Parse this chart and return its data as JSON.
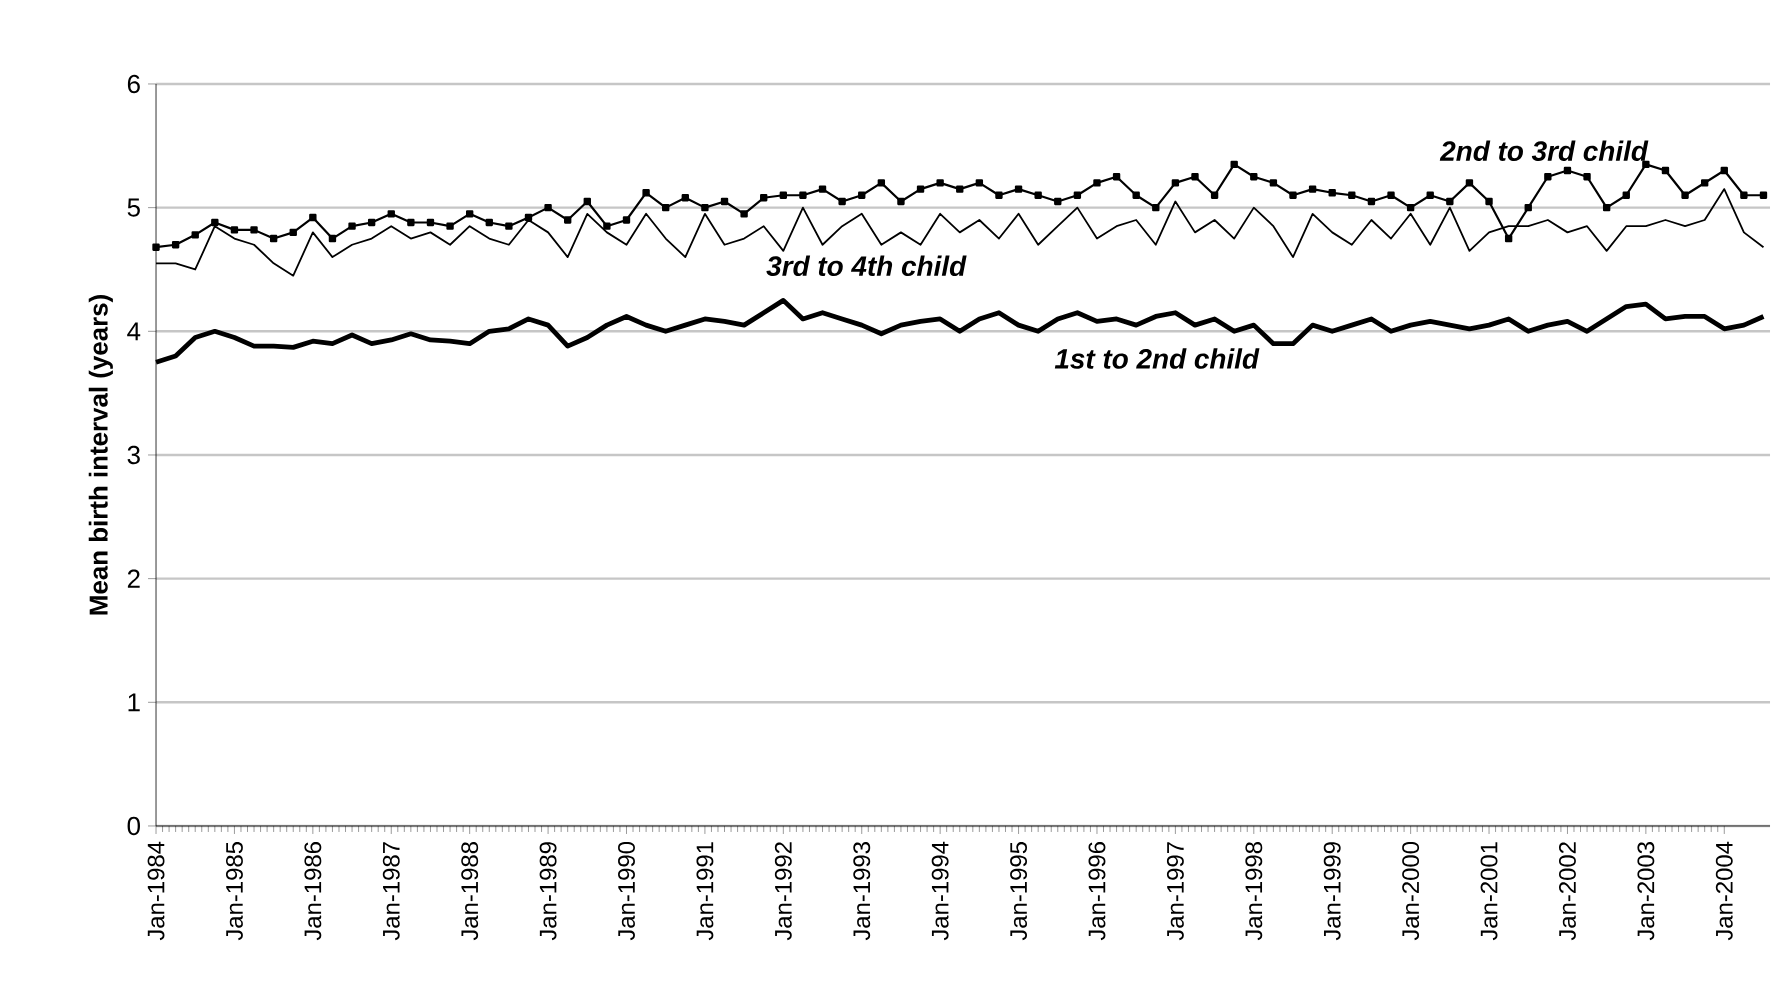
{
  "chart_data": {
    "type": "line",
    "ylabel": "Mean birth interval (years)",
    "x": [
      "1984-01",
      "1984-04",
      "1984-07",
      "1984-10",
      "1985-01",
      "1985-04",
      "1985-07",
      "1985-10",
      "1986-01",
      "1986-04",
      "1986-07",
      "1986-10",
      "1987-01",
      "1987-04",
      "1987-07",
      "1987-10",
      "1988-01",
      "1988-04",
      "1988-07",
      "1988-10",
      "1989-01",
      "1989-04",
      "1989-07",
      "1989-10",
      "1990-01",
      "1990-04",
      "1990-07",
      "1990-10",
      "1991-01",
      "1991-04",
      "1991-07",
      "1991-10",
      "1992-01",
      "1992-04",
      "1992-07",
      "1992-10",
      "1993-01",
      "1993-04",
      "1993-07",
      "1993-10",
      "1994-01",
      "1994-04",
      "1994-07",
      "1994-10",
      "1995-01",
      "1995-04",
      "1995-07",
      "1995-10",
      "1996-01",
      "1996-04",
      "1996-07",
      "1996-10",
      "1997-01",
      "1997-04",
      "1997-07",
      "1997-10",
      "1998-01",
      "1998-04",
      "1998-07",
      "1998-10",
      "1999-01",
      "1999-04",
      "1999-07",
      "1999-10",
      "2000-01",
      "2000-04",
      "2000-07",
      "2000-10",
      "2001-01",
      "2001-04",
      "2001-07",
      "2001-10",
      "2002-01",
      "2002-04",
      "2002-07",
      "2002-10",
      "2003-01",
      "2003-04",
      "2003-07",
      "2003-10",
      "2004-01",
      "2004-04",
      "2004-07"
    ],
    "series": [
      {
        "name": "1st to 2nd child",
        "color": "#000000",
        "marker": "none",
        "values": [
          3.75,
          3.8,
          3.95,
          4.0,
          3.95,
          3.88,
          3.88,
          3.87,
          3.92,
          3.9,
          3.97,
          3.9,
          3.93,
          3.98,
          3.93,
          3.92,
          3.9,
          4.0,
          4.02,
          4.1,
          4.05,
          3.88,
          3.95,
          4.05,
          4.12,
          4.05,
          4.0,
          4.05,
          4.1,
          4.08,
          4.05,
          4.15,
          4.25,
          4.1,
          4.15,
          4.1,
          4.05,
          3.98,
          4.05,
          4.08,
          4.1,
          4.0,
          4.1,
          4.15,
          4.05,
          4.0,
          4.1,
          4.15,
          4.08,
          4.1,
          4.05,
          4.12,
          4.15,
          4.05,
          4.1,
          4.0,
          4.05,
          3.9,
          3.9,
          4.05,
          4.0,
          4.05,
          4.1,
          4.0,
          4.05,
          4.08,
          4.05,
          4.02,
          4.05,
          4.1,
          4.0,
          4.05,
          4.08,
          4.0,
          4.1,
          4.2,
          4.22,
          4.1,
          4.12,
          4.12,
          4.02,
          4.05,
          4.12
        ]
      },
      {
        "name": "2nd to 3rd child",
        "color": "#000000",
        "marker": "square",
        "values": [
          4.68,
          4.7,
          4.78,
          4.88,
          4.82,
          4.82,
          4.75,
          4.8,
          4.92,
          4.75,
          4.85,
          4.88,
          4.95,
          4.88,
          4.88,
          4.85,
          4.95,
          4.88,
          4.85,
          4.92,
          5.0,
          4.9,
          5.05,
          4.85,
          4.9,
          5.12,
          5.0,
          5.08,
          5.0,
          5.05,
          4.95,
          5.08,
          5.1,
          5.1,
          5.15,
          5.05,
          5.1,
          5.2,
          5.05,
          5.15,
          5.2,
          5.15,
          5.2,
          5.1,
          5.15,
          5.1,
          5.05,
          5.1,
          5.2,
          5.25,
          5.1,
          5.0,
          5.2,
          5.25,
          5.1,
          5.35,
          5.25,
          5.2,
          5.1,
          5.15,
          5.12,
          5.1,
          5.05,
          5.1,
          5.0,
          5.1,
          5.05,
          5.2,
          5.05,
          4.75,
          5.0,
          5.25,
          5.3,
          5.25,
          5.0,
          5.1,
          5.35,
          5.3,
          5.1,
          5.2,
          5.3,
          5.1,
          5.1
        ]
      },
      {
        "name": "3rd to 4th child",
        "color": "#000000",
        "marker": "none",
        "values": [
          4.55,
          4.55,
          4.5,
          4.85,
          4.75,
          4.7,
          4.55,
          4.45,
          4.8,
          4.6,
          4.7,
          4.75,
          4.85,
          4.75,
          4.8,
          4.7,
          4.85,
          4.75,
          4.7,
          4.9,
          4.8,
          4.6,
          4.95,
          4.8,
          4.7,
          4.95,
          4.75,
          4.6,
          4.95,
          4.7,
          4.75,
          4.85,
          4.65,
          5.0,
          4.7,
          4.85,
          4.95,
          4.7,
          4.8,
          4.7,
          4.95,
          4.8,
          4.9,
          4.75,
          4.95,
          4.7,
          4.85,
          5.0,
          4.75,
          4.85,
          4.9,
          4.7,
          5.05,
          4.8,
          4.9,
          4.75,
          5.0,
          4.85,
          4.6,
          4.95,
          4.8,
          4.7,
          4.9,
          4.75,
          4.95,
          4.7,
          5.0,
          4.65,
          4.8,
          4.85,
          4.85,
          4.9,
          4.8,
          4.85,
          4.65,
          4.85,
          4.85,
          4.9,
          4.85,
          4.9,
          5.15,
          4.8,
          4.68
        ]
      }
    ],
    "xlim": [
      "1984-01",
      "2004-08"
    ],
    "xticks": [
      {
        "value": "1984-01",
        "label": "Jan-1984"
      },
      {
        "value": "1985-01",
        "label": "Jan-1985"
      },
      {
        "value": "1986-01",
        "label": "Jan-1986"
      },
      {
        "value": "1987-01",
        "label": "Jan-1987"
      },
      {
        "value": "1988-01",
        "label": "Jan-1988"
      },
      {
        "value": "1989-01",
        "label": "Jan-1989"
      },
      {
        "value": "1990-01",
        "label": "Jan-1990"
      },
      {
        "value": "1991-01",
        "label": "Jan-1991"
      },
      {
        "value": "1992-01",
        "label": "Jan-1992"
      },
      {
        "value": "1993-01",
        "label": "Jan-1993"
      },
      {
        "value": "1994-01",
        "label": "Jan-1994"
      },
      {
        "value": "1995-01",
        "label": "Jan-1995"
      },
      {
        "value": "1996-01",
        "label": "Jan-1996"
      },
      {
        "value": "1997-01",
        "label": "Jan-1997"
      },
      {
        "value": "1998-01",
        "label": "Jan-1998"
      },
      {
        "value": "1999-01",
        "label": "Jan-1999"
      },
      {
        "value": "2000-01",
        "label": "Jan-2000"
      },
      {
        "value": "2001-01",
        "label": "Jan-2001"
      },
      {
        "value": "2002-01",
        "label": "Jan-2002"
      },
      {
        "value": "2003-01",
        "label": "Jan-2003"
      },
      {
        "value": "2004-01",
        "label": "Jan-2004"
      }
    ],
    "ylim": [
      0,
      6
    ],
    "yticks": [
      0,
      1,
      2,
      3,
      4,
      5,
      6
    ],
    "grid": "y",
    "line_style": "solid"
  }
}
